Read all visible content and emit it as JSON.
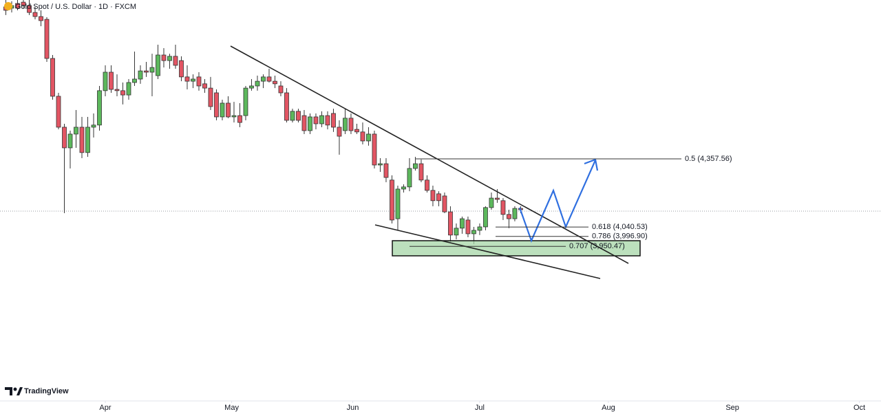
{
  "chart_data": {
    "type": "candlestick",
    "title": "Gold Spot / U.S. Dollar · 1D · FXCM",
    "brand": "TradingView",
    "up_color": "#5cb85c",
    "down_color": "#e25563",
    "x": [
      0,
      1,
      2,
      3,
      4,
      5,
      6,
      7,
      8,
      9,
      10,
      11,
      12,
      13,
      14,
      15,
      16,
      17,
      18,
      19,
      20,
      21,
      22,
      23,
      24,
      25,
      26,
      27,
      28,
      29,
      30,
      31,
      32,
      33,
      34,
      35,
      36,
      37,
      38,
      39,
      40,
      41,
      42,
      43,
      44,
      45,
      46,
      47,
      48,
      49,
      50,
      51,
      52,
      53,
      54,
      55,
      56,
      57,
      58,
      59,
      60,
      61,
      62,
      63,
      64,
      65,
      66,
      67,
      68,
      69,
      70,
      71,
      72,
      73,
      74,
      75,
      76,
      77,
      78,
      79,
      80,
      81,
      82,
      83,
      84,
      85,
      86,
      87,
      88
    ],
    "open": [
      5065,
      5059,
      5081,
      5087,
      5071,
      5039,
      5020,
      5007,
      4825,
      4649,
      4505,
      4409,
      4473,
      4505,
      4387,
      4505,
      4515,
      4675,
      4761,
      4681,
      4675,
      4655,
      4713,
      4729,
      4767,
      4761,
      4745,
      4841,
      4815,
      4835,
      4815,
      4739,
      4719,
      4739,
      4707,
      4687,
      4665,
      4553,
      4617,
      4553,
      4559,
      4559,
      4687,
      4697,
      4719,
      4739,
      4719,
      4697,
      4665,
      4537,
      4579,
      4559,
      4489,
      4553,
      4521,
      4559,
      4569,
      4505,
      4489,
      4547,
      4495,
      4483,
      4441,
      4473,
      4329,
      4335,
      4259,
      4079,
      4217,
      4227,
      4313,
      4335,
      4259,
      4211,
      4195,
      4185,
      4111,
      4003,
      4035,
      4073,
      4009,
      4025,
      4041,
      4131,
      4175,
      4163,
      4099,
      4079,
      4127
    ],
    "high": [
      5097,
      5091,
      5097,
      5097,
      5097,
      5065,
      5049,
      5017,
      4841,
      4665,
      4521,
      4489,
      4585,
      4553,
      4553,
      4569,
      4697,
      4793,
      4793,
      4751,
      4713,
      4729,
      4857,
      4793,
      4809,
      4847,
      4889,
      4873,
      4847,
      4889,
      4835,
      4793,
      4751,
      4761,
      4729,
      4739,
      4681,
      4633,
      4649,
      4623,
      4617,
      4697,
      4729,
      4745,
      4751,
      4777,
      4745,
      4719,
      4687,
      4591,
      4591,
      4585,
      4569,
      4569,
      4579,
      4579,
      4591,
      4537,
      4591,
      4569,
      4521,
      4527,
      4505,
      4489,
      4361,
      4361,
      4281,
      4233,
      4239,
      4361,
      4367,
      4355,
      4281,
      4233,
      4207,
      4201,
      4137,
      4057,
      4089,
      4089,
      4041,
      4057,
      4137,
      4201,
      4217,
      4175,
      4121,
      4137,
      4137
    ],
    "low": [
      5027,
      5039,
      5049,
      5059,
      5027,
      5007,
      4975,
      4809,
      4633,
      4495,
      4105,
      4313,
      4409,
      4361,
      4367,
      4457,
      4489,
      4649,
      4665,
      4649,
      4611,
      4633,
      4697,
      4707,
      4739,
      4649,
      4729,
      4783,
      4777,
      4777,
      4719,
      4681,
      4687,
      4675,
      4665,
      4585,
      4537,
      4537,
      4547,
      4527,
      4505,
      4537,
      4675,
      4675,
      4687,
      4713,
      4687,
      4649,
      4527,
      4527,
      4527,
      4473,
      4473,
      4495,
      4505,
      4495,
      4483,
      4377,
      4473,
      4473,
      4473,
      4425,
      4419,
      4313,
      4297,
      4249,
      4057,
      4025,
      4201,
      4207,
      4303,
      4249,
      4201,
      4137,
      4137,
      4105,
      3971,
      3983,
      4009,
      3993,
      3961,
      4003,
      4025,
      4121,
      4153,
      4073,
      4035,
      4067,
      4105
    ],
    "close": [
      5049,
      5071,
      5059,
      5071,
      5039,
      5020,
      5001,
      4825,
      4649,
      4505,
      4409,
      4473,
      4505,
      4387,
      4505,
      4515,
      4675,
      4761,
      4681,
      4675,
      4655,
      4713,
      4729,
      4767,
      4761,
      4783,
      4841,
      4815,
      4835,
      4793,
      4739,
      4719,
      4729,
      4697,
      4687,
      4601,
      4553,
      4617,
      4553,
      4559,
      4527,
      4687,
      4697,
      4719,
      4739,
      4719,
      4707,
      4665,
      4537,
      4579,
      4537,
      4489,
      4553,
      4521,
      4559,
      4515,
      4505,
      4463,
      4547,
      4489,
      4483,
      4441,
      4473,
      4329,
      4335,
      4271,
      4073,
      4217,
      4227,
      4313,
      4335,
      4259,
      4211,
      4163,
      4163,
      4111,
      4003,
      4035,
      4079,
      4009,
      4025,
      4041,
      4131,
      4175,
      4169,
      4099,
      4079,
      4127,
      4121
    ],
    "xlim": [
      -1,
      149.6
    ],
    "xticks": [
      {
        "value": 17,
        "label": "Apr"
      },
      {
        "value": 38.6,
        "label": "May"
      },
      {
        "value": 59.3,
        "label": "Jun"
      },
      {
        "value": 81,
        "label": "Jul"
      },
      {
        "value": 103,
        "label": "Aug"
      },
      {
        "value": 124.2,
        "label": "Sep"
      },
      {
        "value": 145.9,
        "label": "Oct"
      }
    ],
    "ylim": [
      3231,
      5097
    ],
    "fib_levels": [
      {
        "price": 4357.56,
        "label": "0.5 (4,357.56)"
      },
      {
        "price": 4040.53,
        "label": "0.618 (4,040.53)"
      },
      {
        "price": 3996.9,
        "label": "0.786 (3,996.90)"
      },
      {
        "price": 3950.47,
        "label": "0.707 (3,950.47)"
      }
    ]
  }
}
